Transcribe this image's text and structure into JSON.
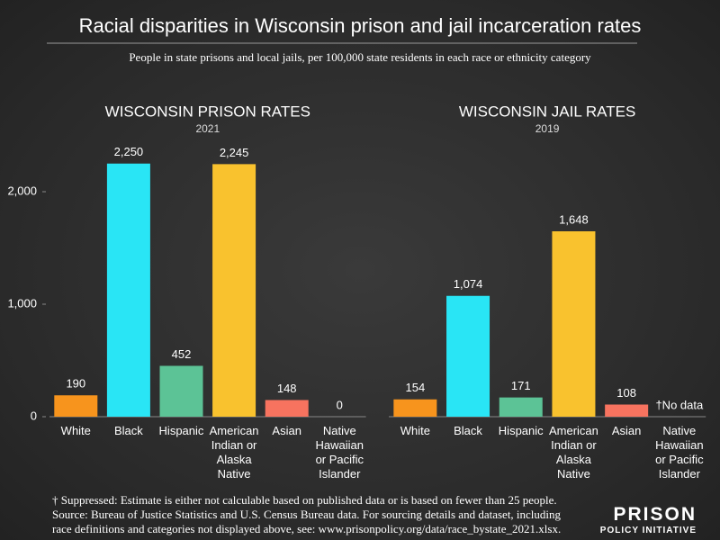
{
  "header": {
    "title": "Racial disparities in Wisconsin prison and jail incarceration rates",
    "subtitle": "People in state prisons and local jails, per 100,000 state residents in each race or ethnicity category"
  },
  "chart_data": [
    {
      "type": "bar",
      "title": "WISCONSIN PRISON RATES",
      "subtitle": "2021",
      "categories": [
        "White",
        "Black",
        "Hispanic",
        "American Indian or Alaska Native",
        "Asian",
        "Native Hawaiian or Pacific Islander"
      ],
      "values": [
        190,
        2250,
        452,
        2245,
        148,
        0
      ],
      "value_labels": [
        "190",
        "2,250",
        "452",
        "2,245",
        "148",
        "0"
      ],
      "colors": [
        "#f7941d",
        "#29e5f5",
        "#5cc396",
        "#f9c22e",
        "#f7735f",
        "#f7941d"
      ],
      "ylim": [
        0,
        2400
      ],
      "yticks": [
        0,
        {
          "value": 1000,
          "label": "1,000"
        },
        {
          "value": 2000,
          "label": "2,000"
        }
      ]
    },
    {
      "type": "bar",
      "title": "WISCONSIN JAIL RATES",
      "subtitle": "2019",
      "categories": [
        "White",
        "Black",
        "Hispanic",
        "American Indian or Alaska Native",
        "Asian",
        "Native Hawaiian or Pacific Islander"
      ],
      "values": [
        154,
        1074,
        171,
        1648,
        108,
        null
      ],
      "value_labels": [
        "154",
        "1,074",
        "171",
        "1,648",
        "108",
        "†No data"
      ],
      "colors": [
        "#f7941d",
        "#29e5f5",
        "#5cc396",
        "#f9c22e",
        "#f7735f",
        "#f7941d"
      ],
      "ylim": [
        0,
        2400
      ]
    }
  ],
  "footnote": [
    "† Suppressed: Estimate is either not calculable based on published data or is based on fewer than 25 people.",
    "Source: Bureau of Justice Statistics and U.S. Census Bureau data. For sourcing details and dataset, including",
    "race definitions and categories not displayed above, see: www.prisonpolicy.org/data/race_bystate_2021.xlsx."
  ],
  "logo": {
    "line1": "PRISON",
    "line2": "POLICY INITIATIVE"
  }
}
